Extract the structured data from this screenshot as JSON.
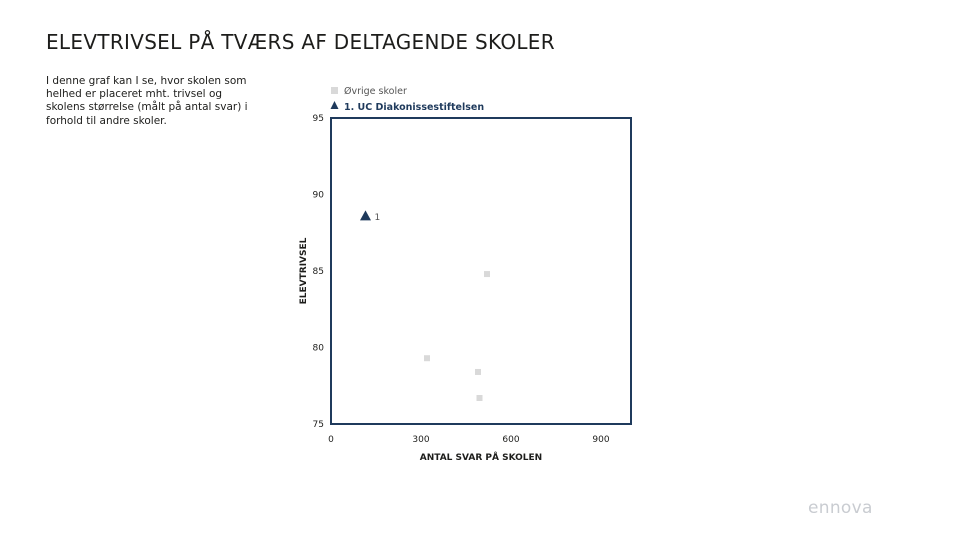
{
  "page": {
    "title": "ELEVTRIVSEL PÅ TVÆRS AF DELTAGENDE SKOLER",
    "description": "I denne graf kan I se, hvor skolen som helhed er placeret mht. trivsel og skolens størrelse (målt på antal svar) i forhold til andre skoler.",
    "logo_text": "ennova"
  },
  "chart_data": {
    "type": "scatter",
    "title": "",
    "xlabel": "ANTAL SVAR PÅ SKOLEN",
    "ylabel": "ELEVTRIVSEL",
    "xlim": [
      0,
      1000
    ],
    "ylim": [
      75,
      95
    ],
    "x_ticks": [
      0,
      300,
      600,
      900
    ],
    "y_ticks": [
      75,
      80,
      85,
      90,
      95
    ],
    "grid": false,
    "legend_position": "top-left",
    "series": [
      {
        "name": "Øvrige skoler",
        "marker": "square",
        "color": "#d9d9d9",
        "points": [
          {
            "x": 520,
            "y": 84.8
          },
          {
            "x": 320,
            "y": 79.3
          },
          {
            "x": 490,
            "y": 78.4
          },
          {
            "x": 495,
            "y": 76.7
          }
        ]
      },
      {
        "name": "1. UC Diakonissestiftelsen",
        "marker": "triangle",
        "color": "#1f3a5c",
        "points": [
          {
            "x": 115,
            "y": 88.6,
            "label": "1"
          }
        ]
      }
    ]
  },
  "colors": {
    "axis_frame": "#1f3a5c",
    "text": "#1d1d1b",
    "logo": "#c9ccd1"
  }
}
